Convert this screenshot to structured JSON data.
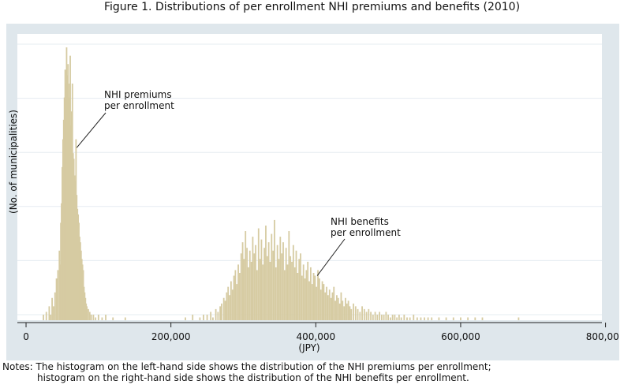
{
  "figure": {
    "title": "Figure 1. Distributions of per enrollment NHI premiums and benefits (2010)",
    "notes_line1": "Notes: The histogram on the left-hand side shows the distribution of the NHI premiums per enrollment;",
    "notes_line2": "histogram on the right-hand side shows the distribution of the NHI benefits per enrollment."
  },
  "colors": {
    "bar": "#d6cba2",
    "bar_edge": "#c2b486",
    "outer_bg": "#dfe7ec",
    "plot_bg": "#ffffff",
    "grid": "#e5ecf1"
  },
  "chart_data": {
    "type": "bar",
    "title": "",
    "xlabel": "(JPY)",
    "ylabel": "(No. of municipalities)",
    "xlim": [
      -12000,
      795000
    ],
    "ylim": [
      0,
      100
    ],
    "x_ticks": [
      0,
      200000,
      400000,
      600000,
      800000
    ],
    "x_tick_labels": [
      "0",
      "200,000",
      "400,000",
      "600,000",
      "800,000"
    ],
    "grid": true,
    "y_tick_labels_shown": false,
    "annotations": [
      {
        "text_lines": [
          "NHI premiums",
          "per enrollment"
        ],
        "points_to_x": 70000,
        "points_to_y": 62
      },
      {
        "text_lines": [
          "NHI benefits",
          "per enrollment"
        ],
        "points_to_x": 402000,
        "points_to_y": 16
      }
    ],
    "series": [
      {
        "name": "NHI premiums per enrollment",
        "x": [
          24000,
          28000,
          32000,
          34000,
          36000,
          38000,
          40000,
          42000,
          44000,
          46000,
          47000,
          48000,
          49000,
          50000,
          51000,
          52000,
          53000,
          54000,
          55000,
          56000,
          57000,
          58000,
          59000,
          60000,
          61000,
          62000,
          63000,
          64000,
          65000,
          66000,
          67000,
          68000,
          69000,
          70000,
          71000,
          72000,
          73000,
          74000,
          75000,
          76000,
          77000,
          78000,
          79000,
          80000,
          81000,
          82000,
          83000,
          84000,
          86000,
          88000,
          90000,
          93000,
          96000,
          100000,
          105000,
          110000,
          120000,
          137000
        ],
        "values": [
          2,
          3,
          5,
          2,
          8,
          5,
          10,
          15,
          18,
          25,
          20,
          35,
          42,
          55,
          65,
          72,
          80,
          90,
          85,
          98,
          88,
          92,
          80,
          85,
          95,
          70,
          75,
          85,
          60,
          58,
          52,
          50,
          65,
          45,
          40,
          38,
          35,
          30,
          28,
          25,
          22,
          20,
          18,
          12,
          10,
          8,
          6,
          5,
          4,
          3,
          2,
          2,
          1,
          2,
          1,
          2,
          1,
          1
        ]
      },
      {
        "name": "NHI benefits per enrollment",
        "x": [
          220000,
          230000,
          240000,
          245000,
          250000,
          255000,
          258000,
          262000,
          265000,
          268000,
          270000,
          273000,
          275000,
          277000,
          279000,
          281000,
          283000,
          285000,
          287000,
          289000,
          291000,
          293000,
          295000,
          297000,
          299000,
          301000,
          303000,
          305000,
          307000,
          309000,
          311000,
          313000,
          315000,
          317000,
          319000,
          321000,
          323000,
          325000,
          327000,
          329000,
          331000,
          333000,
          335000,
          337000,
          339000,
          341000,
          343000,
          345000,
          347000,
          349000,
          351000,
          353000,
          355000,
          357000,
          359000,
          361000,
          363000,
          365000,
          367000,
          369000,
          371000,
          373000,
          375000,
          377000,
          379000,
          381000,
          383000,
          385000,
          387000,
          389000,
          391000,
          393000,
          395000,
          397000,
          399000,
          401000,
          403000,
          405000,
          407000,
          409000,
          411000,
          413000,
          415000,
          417000,
          419000,
          421000,
          423000,
          425000,
          427000,
          429000,
          431000,
          433000,
          435000,
          437000,
          439000,
          441000,
          443000,
          445000,
          447000,
          449000,
          452000,
          455000,
          458000,
          461000,
          464000,
          467000,
          470000,
          473000,
          476000,
          479000,
          482000,
          485000,
          488000,
          491000,
          494000,
          497000,
          500000,
          503000,
          506000,
          509000,
          512000,
          515000,
          518000,
          522000,
          526000,
          530000,
          535000,
          540000,
          545000,
          550000,
          555000,
          560000,
          570000,
          580000,
          590000,
          600000,
          610000,
          620000,
          630000,
          680000
        ],
        "values": [
          1,
          2,
          1,
          2,
          2,
          3,
          1,
          4,
          3,
          5,
          6,
          8,
          7,
          10,
          12,
          9,
          14,
          11,
          16,
          18,
          13,
          20,
          17,
          24,
          28,
          22,
          32,
          26,
          19,
          25,
          21,
          30,
          24,
          27,
          18,
          33,
          22,
          29,
          20,
          26,
          34,
          23,
          28,
          21,
          31,
          25,
          36,
          19,
          27,
          22,
          30,
          24,
          28,
          18,
          26,
          20,
          32,
          23,
          21,
          27,
          19,
          25,
          17,
          22,
          24,
          16,
          20,
          15,
          18,
          21,
          14,
          19,
          13,
          17,
          16,
          12,
          18,
          15,
          11,
          14,
          13,
          10,
          12,
          9,
          11,
          8,
          10,
          12,
          7,
          9,
          8,
          6,
          10,
          7,
          5,
          8,
          6,
          7,
          5,
          4,
          6,
          5,
          4,
          3,
          5,
          4,
          3,
          4,
          3,
          2,
          3,
          2,
          3,
          2,
          2,
          3,
          2,
          1,
          2,
          2,
          1,
          2,
          1,
          2,
          1,
          1,
          2,
          1,
          1,
          1,
          1,
          1,
          1,
          1,
          1,
          1,
          1,
          1,
          1,
          1
        ]
      }
    ]
  }
}
